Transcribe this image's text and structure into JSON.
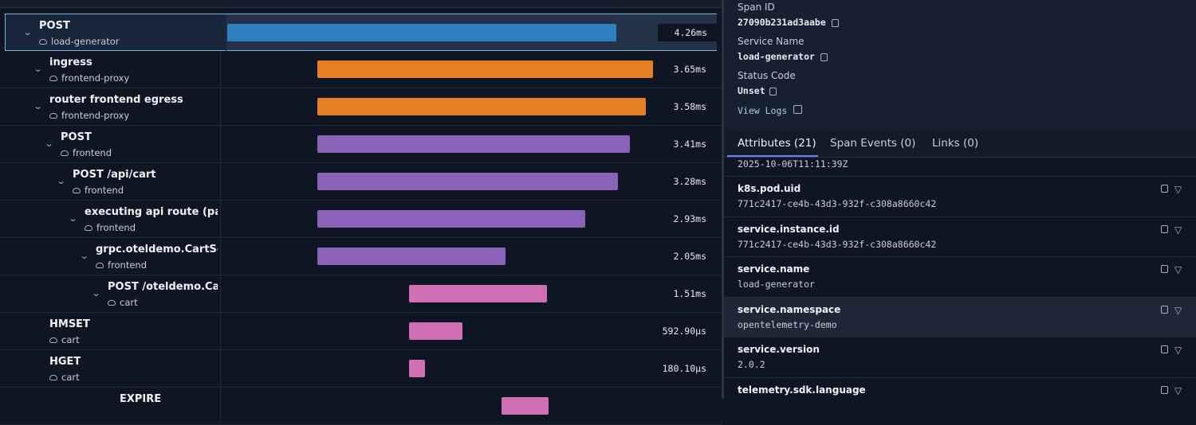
{
  "spans": [
    {
      "name": "POST",
      "service": "load-generator",
      "duration": "4.26ms"
    },
    {
      "name": "ingress",
      "service": "frontend-proxy",
      "duration": "3.65ms"
    },
    {
      "name": "router frontend egress",
      "service": "frontend-proxy",
      "duration": "3.58ms"
    },
    {
      "name": "POST",
      "service": "frontend",
      "duration": "3.41ms"
    },
    {
      "name": "POST /api/cart",
      "service": "frontend",
      "duration": "3.28ms"
    },
    {
      "name": "executing api route (pages",
      "service": "frontend",
      "duration": "2.93ms"
    },
    {
      "name": "grpc.oteldemo.CartServi",
      "service": "frontend",
      "duration": "2.05ms"
    },
    {
      "name": "POST /oteldemo.CartS",
      "service": "cart",
      "duration": "1.51ms"
    },
    {
      "name": "HMSET",
      "service": "cart",
      "duration": "592.90µs"
    },
    {
      "name": "HGET",
      "service": "cart",
      "duration": "180.10µs"
    },
    {
      "name": "EXPIRE"
    }
  ],
  "details": [
    {
      "label": "Span ID",
      "value": "27090b231ad3aabe"
    },
    {
      "label": "Service Name",
      "value": "load-generator"
    },
    {
      "label": "Status Code",
      "value": "Unset"
    }
  ],
  "view_logs": "View Logs",
  "tabs": [
    "Attributes (21)",
    "Span Events (0)",
    "Links (0)"
  ],
  "attributes_partial_value": "2025-10-06T11:11:39Z",
  "attributes": [
    {
      "key": "k8s.pod.uid",
      "value": "771c2417-ce4b-43d3-932f-c308a8660c42"
    },
    {
      "key": "service.instance.id",
      "value": "771c2417-ce4b-43d3-932f-c308a8660c42"
    },
    {
      "key": "service.name",
      "value": "load-generator"
    },
    {
      "key": "service.namespace",
      "value": "opentelemetry-demo"
    },
    {
      "key": "service.version",
      "value": "2.0.2"
    },
    {
      "key": "telemetry.sdk.language"
    }
  ]
}
